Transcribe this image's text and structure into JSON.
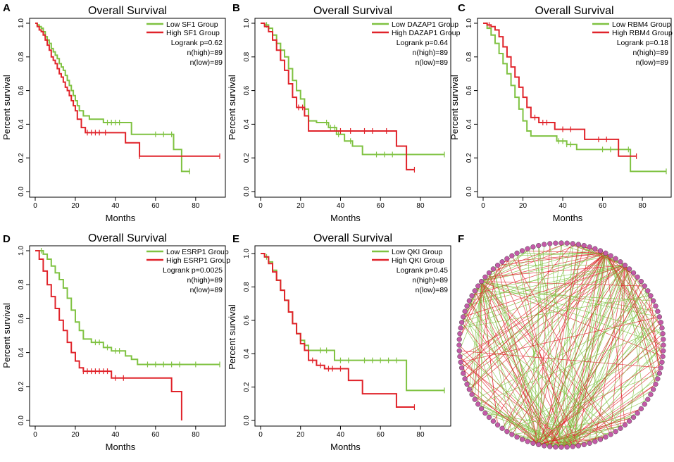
{
  "chart_data": [
    {
      "type": "line",
      "panel": "A",
      "title": "Overall Survival",
      "xlabel": "Months",
      "ylabel": "Percent survival",
      "xticks": [
        "0",
        "20",
        "40",
        "60",
        "80"
      ],
      "yticks": [
        "0.0",
        "0.2",
        "0.4",
        "0.6",
        "0.8",
        "1.0"
      ],
      "xlim": [
        0,
        92
      ],
      "ylim": [
        0,
        1
      ],
      "legend": [
        "Low SF1 Group",
        "High SF1 Group"
      ],
      "stats": [
        "Logrank p=0.62",
        "n(high)=89",
        "n(low)=89"
      ],
      "series": [
        {
          "name": "Low SF1 Group",
          "color": "#7fc241",
          "x": [
            0,
            1,
            2,
            3,
            4,
            5,
            6,
            7,
            8,
            9,
            10,
            11,
            12,
            13,
            14,
            15,
            16,
            17,
            18,
            19,
            20,
            21,
            22,
            24,
            27,
            34,
            48,
            69,
            73,
            77
          ],
          "y": [
            1.0,
            0.99,
            0.98,
            0.97,
            0.95,
            0.92,
            0.9,
            0.88,
            0.85,
            0.83,
            0.81,
            0.79,
            0.76,
            0.74,
            0.72,
            0.69,
            0.66,
            0.63,
            0.6,
            0.57,
            0.54,
            0.51,
            0.48,
            0.45,
            0.43,
            0.41,
            0.34,
            0.25,
            0.12,
            0.12
          ],
          "censor": [
            4,
            36,
            38,
            40,
            42,
            60,
            64,
            68,
            77
          ]
        },
        {
          "name": "High SF1 Group",
          "color": "#e0232a",
          "x": [
            0,
            1,
            2,
            3,
            4,
            5,
            6,
            7,
            8,
            9,
            10,
            11,
            12,
            13,
            14,
            15,
            16,
            17,
            18,
            19,
            20,
            21,
            23,
            25,
            45,
            52,
            92
          ],
          "y": [
            1.0,
            0.98,
            0.96,
            0.95,
            0.93,
            0.9,
            0.87,
            0.84,
            0.8,
            0.78,
            0.76,
            0.73,
            0.7,
            0.68,
            0.65,
            0.62,
            0.6,
            0.57,
            0.54,
            0.51,
            0.48,
            0.43,
            0.38,
            0.35,
            0.29,
            0.21,
            0.21
          ],
          "censor": [
            26,
            28,
            30,
            32,
            35,
            52,
            92
          ]
        }
      ]
    },
    {
      "type": "line",
      "panel": "B",
      "title": "Overall Survival",
      "xlabel": "Months",
      "ylabel": "Percent survival",
      "xticks": [
        "0",
        "20",
        "40",
        "60",
        "80"
      ],
      "yticks": [
        "0.0",
        "0.2",
        "0.4",
        "0.6",
        "0.8",
        "1.0"
      ],
      "xlim": [
        0,
        92
      ],
      "ylim": [
        0,
        1
      ],
      "legend": [
        "Low DAZAP1 Group",
        "High DAZAP1 Group"
      ],
      "stats": [
        "Logrank p=0.64",
        "n(high)=89",
        "n(low)=89"
      ],
      "series": [
        {
          "name": "Low DAZAP1 Group",
          "color": "#7fc241",
          "x": [
            0,
            2,
            4,
            6,
            8,
            10,
            12,
            14,
            16,
            18,
            20,
            22,
            24,
            28,
            34,
            38,
            42,
            46,
            51,
            92
          ],
          "y": [
            1.0,
            0.99,
            0.97,
            0.93,
            0.88,
            0.84,
            0.8,
            0.73,
            0.66,
            0.6,
            0.55,
            0.49,
            0.42,
            0.41,
            0.38,
            0.34,
            0.3,
            0.27,
            0.22,
            0.22
          ],
          "censor": [
            3,
            33,
            35,
            37,
            39,
            45,
            58,
            62,
            66,
            92
          ]
        },
        {
          "name": "High DAZAP1 Group",
          "color": "#e0232a",
          "x": [
            0,
            2,
            4,
            6,
            8,
            10,
            12,
            14,
            16,
            18,
            20,
            22,
            24,
            68,
            73,
            77
          ],
          "y": [
            1.0,
            0.98,
            0.95,
            0.9,
            0.84,
            0.78,
            0.72,
            0.64,
            0.56,
            0.5,
            0.5,
            0.45,
            0.36,
            0.27,
            0.13,
            0.13
          ],
          "censor": [
            19,
            21,
            40,
            45,
            52,
            56,
            63,
            77
          ]
        }
      ]
    },
    {
      "type": "line",
      "panel": "C",
      "title": "Overall Survival",
      "xlabel": "Months",
      "ylabel": "Percent survival",
      "xticks": [
        "0",
        "20",
        "40",
        "60",
        "80"
      ],
      "yticks": [
        "0.0",
        "0.2",
        "0.4",
        "0.6",
        "0.8",
        "1.0"
      ],
      "xlim": [
        0,
        92
      ],
      "ylim": [
        0,
        1
      ],
      "legend": [
        "Low RBM4 Group",
        "High RBM4 Group"
      ],
      "stats": [
        "Logrank p=0.18",
        "n(high)=89",
        "n(low)=89"
      ],
      "series": [
        {
          "name": "Low RBM4 Group",
          "color": "#7fc241",
          "x": [
            0,
            2,
            4,
            6,
            8,
            10,
            12,
            14,
            16,
            18,
            20,
            22,
            24,
            30,
            37,
            42,
            47,
            51,
            74,
            92
          ],
          "y": [
            1.0,
            0.97,
            0.93,
            0.88,
            0.82,
            0.76,
            0.7,
            0.63,
            0.56,
            0.49,
            0.42,
            0.36,
            0.33,
            0.33,
            0.3,
            0.28,
            0.25,
            0.25,
            0.12,
            0.12
          ],
          "censor": [
            38,
            40,
            42,
            44,
            60,
            64,
            68,
            73,
            92
          ]
        },
        {
          "name": "High RBM4 Group",
          "color": "#e0232a",
          "x": [
            0,
            2,
            4,
            6,
            8,
            10,
            12,
            14,
            16,
            18,
            20,
            22,
            24,
            28,
            36,
            51,
            68,
            77
          ],
          "y": [
            1.0,
            0.99,
            0.98,
            0.96,
            0.92,
            0.86,
            0.8,
            0.74,
            0.68,
            0.62,
            0.56,
            0.5,
            0.44,
            0.41,
            0.37,
            0.31,
            0.21,
            0.21
          ],
          "censor": [
            3,
            26,
            30,
            32,
            40,
            44,
            58,
            62,
            77
          ]
        }
      ]
    },
    {
      "type": "line",
      "panel": "D",
      "title": "Overall Survival",
      "xlabel": "Months",
      "ylabel": "Percent survival",
      "xticks": [
        "0",
        "20",
        "40",
        "60",
        "80"
      ],
      "yticks": [
        "0.0",
        "0.2",
        "0.4",
        "0.6",
        "0.8",
        "1.0"
      ],
      "xlim": [
        0,
        92
      ],
      "ylim": [
        0,
        1
      ],
      "legend": [
        "Low ESRP1 Group",
        "High ESRP1 Group"
      ],
      "stats": [
        "Logrank p=0.0025",
        "n(high)=89",
        "n(low)=89"
      ],
      "series": [
        {
          "name": "Low ESRP1 Group",
          "color": "#7fc241",
          "x": [
            0,
            4,
            6,
            8,
            10,
            12,
            14,
            16,
            18,
            20,
            22,
            24,
            28,
            34,
            38,
            45,
            48,
            51,
            92
          ],
          "y": [
            1.0,
            0.98,
            0.95,
            0.91,
            0.87,
            0.83,
            0.78,
            0.72,
            0.65,
            0.58,
            0.53,
            0.48,
            0.46,
            0.43,
            0.41,
            0.38,
            0.36,
            0.33,
            0.33
          ],
          "censor": [
            3,
            30,
            32,
            36,
            40,
            42,
            56,
            60,
            64,
            68,
            72,
            80,
            92
          ]
        },
        {
          "name": "High ESRP1 Group",
          "color": "#e0232a",
          "x": [
            0,
            2,
            4,
            6,
            8,
            10,
            12,
            14,
            16,
            18,
            20,
            22,
            24,
            38,
            68,
            73
          ],
          "y": [
            1.0,
            0.95,
            0.88,
            0.8,
            0.73,
            0.66,
            0.59,
            0.53,
            0.46,
            0.4,
            0.35,
            0.31,
            0.29,
            0.25,
            0.17,
            0.0
          ],
          "censor": [
            24,
            26,
            28,
            30,
            32,
            34,
            36,
            40,
            44
          ]
        }
      ]
    },
    {
      "type": "line",
      "panel": "E",
      "title": "Overall Survival",
      "xlabel": "Months",
      "ylabel": "Percent survival",
      "xticks": [
        "0",
        "20",
        "40",
        "60",
        "80"
      ],
      "yticks": [
        "0.0",
        "0.2",
        "0.4",
        "0.6",
        "0.8",
        "1.0"
      ],
      "xlim": [
        0,
        92
      ],
      "ylim": [
        0,
        1
      ],
      "legend": [
        "Low QKI Group",
        "High QKI Group"
      ],
      "stats": [
        "Logrank p=0.45",
        "n(high)=89",
        "n(low)=89"
      ],
      "series": [
        {
          "name": "Low QKI Group",
          "color": "#7fc241",
          "x": [
            0,
            2,
            4,
            6,
            8,
            10,
            12,
            14,
            16,
            18,
            20,
            22,
            24,
            37,
            73,
            92
          ],
          "y": [
            1.0,
            0.98,
            0.95,
            0.9,
            0.84,
            0.78,
            0.72,
            0.65,
            0.58,
            0.52,
            0.48,
            0.45,
            0.42,
            0.36,
            0.18,
            0.18
          ],
          "censor": [
            3,
            30,
            33,
            40,
            44,
            52,
            56,
            60,
            64,
            68,
            92
          ]
        },
        {
          "name": "High QKI Group",
          "color": "#e0232a",
          "x": [
            0,
            2,
            4,
            6,
            8,
            10,
            12,
            14,
            16,
            18,
            20,
            22,
            24,
            28,
            32,
            44,
            51,
            68,
            77
          ],
          "y": [
            1.0,
            0.98,
            0.94,
            0.89,
            0.84,
            0.78,
            0.72,
            0.65,
            0.58,
            0.52,
            0.46,
            0.42,
            0.36,
            0.33,
            0.31,
            0.24,
            0.16,
            0.08,
            0.08
          ],
          "censor": [
            26,
            30,
            34,
            36,
            40,
            77
          ]
        }
      ]
    }
  ],
  "network": {
    "panel": "F",
    "type": "circular network",
    "edge_colors": [
      "#7fc241",
      "#e0232a"
    ],
    "node_color": "#c45aa8"
  }
}
